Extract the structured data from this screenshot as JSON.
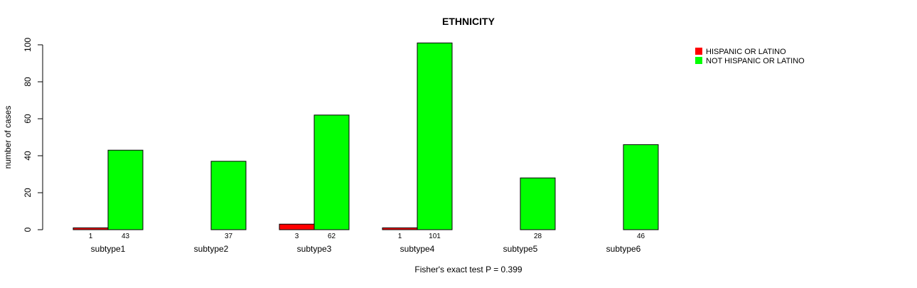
{
  "chart_data": {
    "type": "bar",
    "title": "ETHNICITY",
    "xlabel": "",
    "ylabel": "number of cases",
    "ylim": [
      0,
      100
    ],
    "yticks": [
      0,
      20,
      40,
      60,
      80,
      100
    ],
    "categories": [
      "subtype1",
      "subtype2",
      "subtype3",
      "subtype4",
      "subtype5",
      "subtype6"
    ],
    "series": [
      {
        "name": "HISPANIC OR LATINO",
        "color": "#ff0000",
        "values": [
          1,
          0,
          3,
          1,
          0,
          0
        ],
        "labels": [
          "1",
          "",
          "3",
          "1",
          "",
          ""
        ]
      },
      {
        "name": "NOT HISPANIC OR LATINO",
        "color": "#00ff00",
        "values": [
          43,
          37,
          62,
          101,
          28,
          46
        ],
        "labels": [
          "43",
          "37",
          "62",
          "101",
          "28",
          "46"
        ]
      }
    ],
    "legend_position": "top-right",
    "grid": false,
    "footer": "Fisher's exact test P = 0.399"
  }
}
